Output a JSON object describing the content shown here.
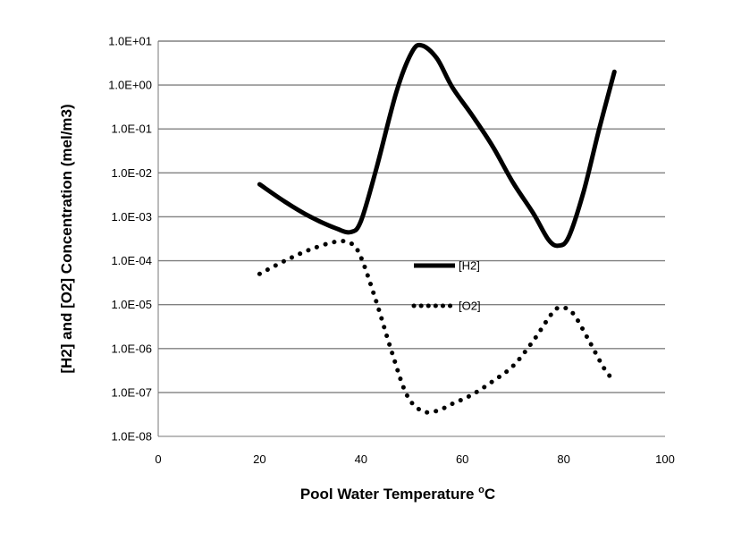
{
  "chart_data": {
    "type": "line",
    "xlabel": "Pool Water Temperature",
    "xlabel_sup": "o",
    "xlabel_unit": "C",
    "ylabel": "[H2] and [O2] Concentration (mel/m3)",
    "xlim": [
      0,
      100
    ],
    "x_ticks": [
      0,
      20,
      40,
      60,
      80,
      100
    ],
    "y_scale": "log",
    "ylim": [
      1e-08,
      10
    ],
    "y_ticks": [
      {
        "value": 10,
        "label": "1.0E+01"
      },
      {
        "value": 1,
        "label": "1.0E+00"
      },
      {
        "value": 0.1,
        "label": "1.0E-01"
      },
      {
        "value": 0.01,
        "label": "1.0E-02"
      },
      {
        "value": 0.001,
        "label": "1.0E-03"
      },
      {
        "value": 0.0001,
        "label": "1.0E-04"
      },
      {
        "value": 1e-05,
        "label": "1.0E-05"
      },
      {
        "value": 1e-06,
        "label": "1.0E-06"
      },
      {
        "value": 1e-07,
        "label": "1.0E-07"
      },
      {
        "value": 1e-08,
        "label": "1.0E-08"
      }
    ],
    "grid": "horizontal",
    "legend_position": "center",
    "series": [
      {
        "name": "[H2]",
        "style": "solid",
        "color": "#000000",
        "x": [
          20,
          25,
          30,
          35,
          38,
          40,
          43,
          47,
          50,
          52,
          55,
          58,
          62,
          66,
          70,
          74,
          77,
          79,
          81,
          84,
          87,
          90
        ],
        "y": [
          0.0055,
          0.0022,
          0.001,
          0.00055,
          0.00045,
          0.0008,
          0.012,
          0.7,
          5.5,
          8.0,
          4.0,
          0.9,
          0.2,
          0.04,
          0.006,
          0.0012,
          0.0003,
          0.00022,
          0.00035,
          0.004,
          0.1,
          2.0
        ]
      },
      {
        "name": "[O2]",
        "style": "dotted",
        "color": "#000000",
        "x": [
          20,
          25,
          30,
          35,
          38,
          40,
          43,
          46,
          49,
          52,
          55,
          58,
          62,
          66,
          70,
          74,
          78,
          80,
          82,
          85,
          88,
          90
        ],
        "y": [
          5e-05,
          0.0001,
          0.00018,
          0.00027,
          0.00025,
          0.00012,
          1.2e-05,
          9e-07,
          9e-08,
          3.8e-08,
          3.8e-08,
          5.5e-08,
          9e-08,
          1.8e-07,
          4e-07,
          1.5e-06,
          7e-06,
          8.5e-06,
          6e-06,
          1.5e-06,
          3.5e-07,
          1.8e-07
        ]
      }
    ]
  }
}
